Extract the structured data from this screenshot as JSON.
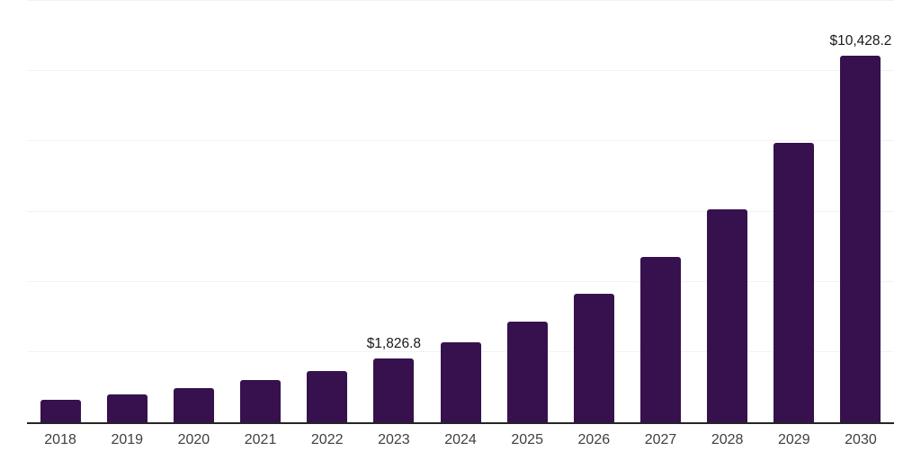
{
  "chart_data": {
    "type": "bar",
    "categories": [
      "2018",
      "2019",
      "2020",
      "2021",
      "2022",
      "2023",
      "2024",
      "2025",
      "2026",
      "2027",
      "2028",
      "2029",
      "2030"
    ],
    "values": [
      640,
      790,
      980,
      1210,
      1450,
      1826.8,
      2290,
      2865,
      3660,
      4700,
      6070,
      7950,
      10428.2
    ],
    "point_labels": {
      "2023": "$1,826.8",
      "2030": "$10,428.2"
    },
    "title": "",
    "xlabel": "",
    "ylabel": "",
    "ylim": [
      0,
      12000
    ],
    "gridline_interval": 2000,
    "grid": "horizontal-only",
    "y_tick_labels_visible": false,
    "legend_position": "none",
    "colors": {
      "bar": "#36114D",
      "axis_line": "#262626",
      "gridline": "#f2f2f2",
      "value_label": "#1a1a1a",
      "tick_label": "#404040",
      "background": "#ffffff"
    }
  }
}
